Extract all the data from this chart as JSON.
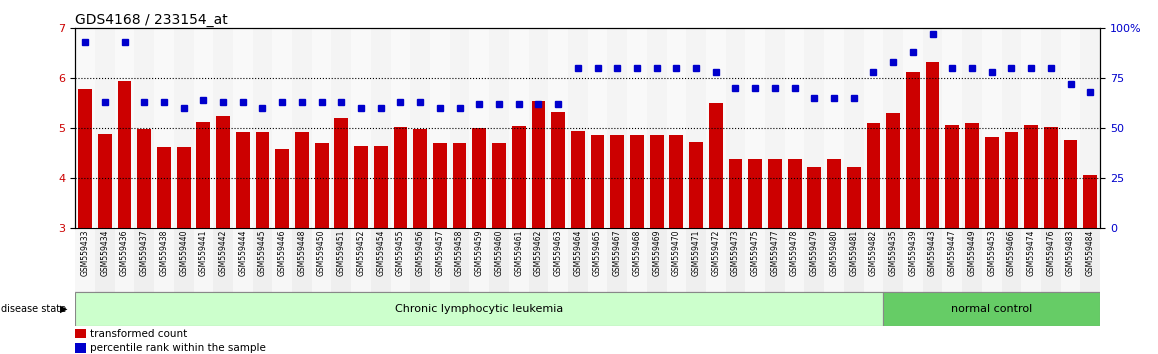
{
  "title": "GDS4168 / 233154_at",
  "samples": [
    "GSM559433",
    "GSM559434",
    "GSM559436",
    "GSM559437",
    "GSM559438",
    "GSM559440",
    "GSM559441",
    "GSM559442",
    "GSM559444",
    "GSM559445",
    "GSM559446",
    "GSM559448",
    "GSM559450",
    "GSM559451",
    "GSM559452",
    "GSM559454",
    "GSM559455",
    "GSM559456",
    "GSM559457",
    "GSM559458",
    "GSM559459",
    "GSM559460",
    "GSM559461",
    "GSM559462",
    "GSM559463",
    "GSM559464",
    "GSM559465",
    "GSM559467",
    "GSM559468",
    "GSM559469",
    "GSM559470",
    "GSM559471",
    "GSM559472",
    "GSM559473",
    "GSM559475",
    "GSM559477",
    "GSM559478",
    "GSM559479",
    "GSM559480",
    "GSM559481",
    "GSM559482",
    "GSM559435",
    "GSM559439",
    "GSM559443",
    "GSM559447",
    "GSM559449",
    "GSM559453",
    "GSM559466",
    "GSM559474",
    "GSM559476",
    "GSM559483",
    "GSM559484"
  ],
  "bar_values": [
    5.78,
    4.88,
    5.95,
    4.98,
    4.62,
    4.62,
    5.12,
    5.24,
    4.92,
    4.92,
    4.58,
    4.92,
    4.7,
    5.2,
    4.65,
    4.65,
    5.02,
    4.98,
    4.7,
    4.7,
    5.0,
    4.7,
    5.05,
    5.55,
    5.32,
    4.95,
    4.87,
    4.87,
    4.87,
    4.87,
    4.87,
    4.72,
    5.5,
    4.38,
    4.38,
    4.38,
    4.38,
    4.22,
    4.38,
    4.22,
    5.1,
    5.3,
    6.12,
    6.32,
    5.06,
    5.1,
    4.82,
    4.92,
    5.06,
    5.02,
    4.76,
    4.06
  ],
  "percentile_values": [
    93,
    63,
    93,
    63,
    63,
    60,
    64,
    63,
    63,
    60,
    63,
    63,
    63,
    63,
    60,
    60,
    63,
    63,
    60,
    60,
    62,
    62,
    62,
    62,
    62,
    80,
    80,
    80,
    80,
    80,
    80,
    80,
    78,
    70,
    70,
    70,
    70,
    65,
    65,
    65,
    78,
    83,
    88,
    97,
    80,
    80,
    78,
    80,
    80,
    80,
    72,
    68
  ],
  "bar_color": "#cc0000",
  "dot_color": "#0000cc",
  "ylim_left": [
    3.0,
    7.0
  ],
  "ylim_right": [
    0,
    100
  ],
  "yticks_left": [
    3,
    4,
    5,
    6,
    7
  ],
  "yticks_right": [
    0,
    25,
    50,
    75,
    100
  ],
  "cll_count": 41,
  "nc_count": 11,
  "cll_color": "#ccffcc",
  "nc_color": "#66cc66",
  "disease_label": "Chronic lymphocytic leukemia",
  "normal_label": "normal control",
  "disease_state_label": "disease state",
  "legend_bar_label": "transformed count",
  "legend_dot_label": "percentile rank within the sample",
  "bar_width": 0.7
}
